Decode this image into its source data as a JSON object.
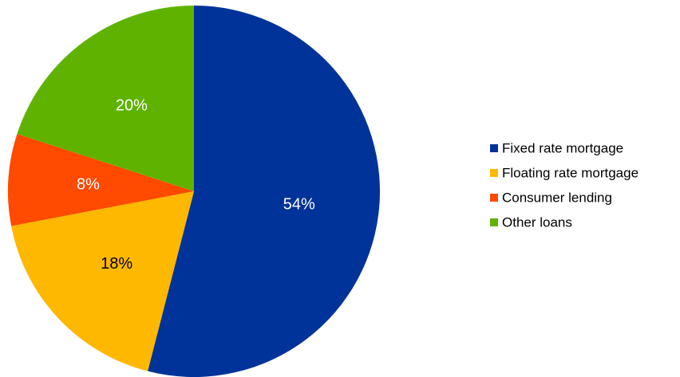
{
  "chart_data": {
    "type": "pie",
    "title": "",
    "legend_position": "right",
    "slices": [
      {
        "label": "Fixed rate mortgage",
        "value": 54,
        "display": "54%",
        "color": "#003399",
        "label_color": "#ffffff"
      },
      {
        "label": "Floating rate mortgage",
        "value": 18,
        "display": "18%",
        "color": "#ffb800",
        "label_color": "#000000"
      },
      {
        "label": "Consumer lending",
        "value": 8,
        "display": "8%",
        "color": "#ff4a00",
        "label_color": "#ffffff"
      },
      {
        "label": "Other loans",
        "value": 20,
        "display": "20%",
        "color": "#5fb300",
        "label_color": "#ffffff"
      }
    ]
  }
}
